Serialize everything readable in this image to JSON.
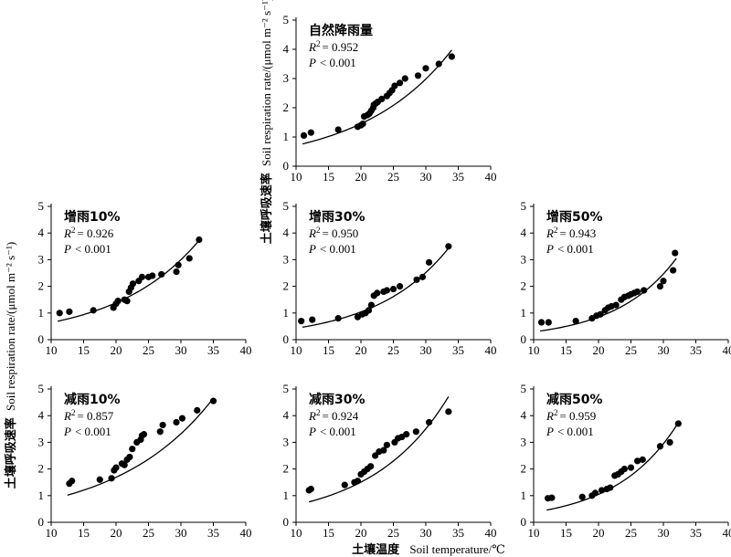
{
  "figure": {
    "ylabel_cn": "土壤呼吸速率",
    "ylabel_en": "Soil respiration rate/(μmol m⁻² s⁻¹)",
    "xlabel_cn": "土壤温度",
    "xlabel_en": "Soil temperature/℃"
  },
  "chart_data": [
    {
      "type": "scatter",
      "title": "自然降雨量",
      "r2_text": "= 0.952",
      "p_text": "< 0.001",
      "xlim": [
        10,
        40
      ],
      "ylim": [
        0,
        5
      ],
      "xticks": [
        "10",
        "15",
        "20",
        "25",
        "30",
        "35",
        "40"
      ],
      "yticks": [
        "0",
        "1",
        "2",
        "3",
        "4",
        "5"
      ],
      "fit": {
        "a": 0.345,
        "b": 0.0719,
        "x_start": 11,
        "x_end": 34
      },
      "points": [
        [
          11.2,
          1.05
        ],
        [
          12.3,
          1.15
        ],
        [
          16.5,
          1.25
        ],
        [
          19.5,
          1.35
        ],
        [
          20,
          1.4
        ],
        [
          20.3,
          1.45
        ],
        [
          20.5,
          1.7
        ],
        [
          21,
          1.75
        ],
        [
          21.3,
          1.8
        ],
        [
          21.6,
          1.9
        ],
        [
          21.9,
          2.0
        ],
        [
          22,
          2.1
        ],
        [
          22.3,
          2.15
        ],
        [
          22.6,
          2.2
        ],
        [
          23.2,
          2.3
        ],
        [
          24,
          2.4
        ],
        [
          24.4,
          2.5
        ],
        [
          24.8,
          2.6
        ],
        [
          25.2,
          2.75
        ],
        [
          26,
          2.85
        ],
        [
          26.8,
          3.0
        ],
        [
          28.8,
          3.1
        ],
        [
          30,
          3.35
        ],
        [
          32,
          3.5
        ],
        [
          34,
          3.75
        ]
      ]
    },
    {
      "type": "scatter",
      "title": "增雨10%",
      "r2_text": "= 0.926",
      "p_text": "< 0.001",
      "xlim": [
        10,
        40
      ],
      "ylim": [
        0,
        5
      ],
      "xticks": [
        "10",
        "15",
        "20",
        "25",
        "30",
        "35",
        "40"
      ],
      "yticks": [
        "0",
        "1",
        "2",
        "3",
        "4",
        "5"
      ],
      "fit": {
        "a": 0.295,
        "b": 0.0773,
        "x_start": 11,
        "x_end": 33
      },
      "points": [
        [
          11.3,
          1.0
        ],
        [
          12.8,
          1.05
        ],
        [
          16.5,
          1.1
        ],
        [
          19.6,
          1.2
        ],
        [
          20,
          1.35
        ],
        [
          20.3,
          1.45
        ],
        [
          21.3,
          1.5
        ],
        [
          21.7,
          1.45
        ],
        [
          22,
          1.8
        ],
        [
          22.3,
          1.95
        ],
        [
          22.6,
          2.1
        ],
        [
          23.5,
          2.2
        ],
        [
          24,
          2.35
        ],
        [
          25,
          2.35
        ],
        [
          25.6,
          2.4
        ],
        [
          27,
          2.45
        ],
        [
          29.3,
          2.55
        ],
        [
          29.6,
          2.8
        ],
        [
          31.3,
          3.05
        ],
        [
          32.8,
          3.75
        ]
      ]
    },
    {
      "type": "scatter",
      "title": "增雨30%",
      "r2_text": "= 0.950",
      "p_text": "< 0.001",
      "xlim": [
        10,
        40
      ],
      "ylim": [
        0,
        5
      ],
      "xticks": [
        "10",
        "15",
        "20",
        "25",
        "30",
        "35",
        "40"
      ],
      "yticks": [
        "0",
        "1",
        "2",
        "3",
        "4",
        "5"
      ],
      "fit": {
        "a": 0.177,
        "b": 0.0885,
        "x_start": 11,
        "x_end": 33.5
      },
      "points": [
        [
          10.8,
          0.7
        ],
        [
          12.5,
          0.75
        ],
        [
          16.5,
          0.8
        ],
        [
          19.5,
          0.85
        ],
        [
          20.2,
          0.95
        ],
        [
          20.7,
          1.0
        ],
        [
          21.2,
          1.1
        ],
        [
          21.6,
          1.3
        ],
        [
          22,
          1.65
        ],
        [
          22.5,
          1.75
        ],
        [
          23.5,
          1.8
        ],
        [
          24,
          1.85
        ],
        [
          25,
          1.9
        ],
        [
          26,
          2.0
        ],
        [
          28.6,
          2.25
        ],
        [
          29.5,
          2.35
        ],
        [
          30.5,
          2.9
        ],
        [
          33.5,
          3.5
        ]
      ]
    },
    {
      "type": "scatter",
      "title": "增雨50%",
      "r2_text": "= 0.943",
      "p_text": "< 0.001",
      "xlim": [
        10,
        40
      ],
      "ylim": [
        0,
        5
      ],
      "xticks": [
        "10",
        "15",
        "20",
        "25",
        "30",
        "35",
        "40"
      ],
      "yticks": [
        "0",
        "1",
        "2",
        "3",
        "4",
        "5"
      ],
      "fit": {
        "a": 0.101,
        "b": 0.1065,
        "x_start": 11,
        "x_end": 32
      },
      "points": [
        [
          11.2,
          0.65
        ],
        [
          12.3,
          0.65
        ],
        [
          16.5,
          0.7
        ],
        [
          19,
          0.8
        ],
        [
          19.7,
          0.9
        ],
        [
          20.3,
          0.95
        ],
        [
          21,
          1.1
        ],
        [
          21.5,
          1.2
        ],
        [
          22,
          1.25
        ],
        [
          22.7,
          1.3
        ],
        [
          23.5,
          1.5
        ],
        [
          24,
          1.6
        ],
        [
          24.6,
          1.65
        ],
        [
          25,
          1.7
        ],
        [
          25.5,
          1.75
        ],
        [
          26,
          1.8
        ],
        [
          27,
          1.85
        ],
        [
          29.5,
          2.0
        ],
        [
          30,
          2.2
        ],
        [
          31.5,
          2.6
        ],
        [
          31.8,
          3.25
        ]
      ]
    },
    {
      "type": "scatter",
      "title": "减雨10%",
      "r2_text": "= 0.857",
      "p_text": "< 0.001",
      "xlim": [
        10,
        40
      ],
      "ylim": [
        0,
        5
      ],
      "xticks": [
        "10",
        "15",
        "20",
        "25",
        "30",
        "35",
        "40"
      ],
      "yticks": [
        "0",
        "1",
        "2",
        "3",
        "4",
        "5"
      ],
      "fit": {
        "a": 0.437,
        "b": 0.0676,
        "x_start": 12.5,
        "x_end": 35
      },
      "points": [
        [
          12.8,
          1.45
        ],
        [
          13.2,
          1.55
        ],
        [
          17.5,
          1.6
        ],
        [
          19.3,
          1.65
        ],
        [
          19.7,
          1.95
        ],
        [
          20,
          2.05
        ],
        [
          20.9,
          2.2
        ],
        [
          21.3,
          2.15
        ],
        [
          21.7,
          2.35
        ],
        [
          22.1,
          2.45
        ],
        [
          22.5,
          2.75
        ],
        [
          23.2,
          3.0
        ],
        [
          23.8,
          3.1
        ],
        [
          24,
          3.25
        ],
        [
          24.3,
          3.3
        ],
        [
          26.8,
          3.4
        ],
        [
          27.2,
          3.65
        ],
        [
          29.3,
          3.75
        ],
        [
          30.2,
          3.9
        ],
        [
          32.5,
          4.2
        ],
        [
          35,
          4.55
        ]
      ]
    },
    {
      "type": "scatter",
      "title": "减雨30%",
      "r2_text": "= 0.924",
      "p_text": "< 0.001",
      "xlim": [
        10,
        40
      ],
      "ylim": [
        0,
        5
      ],
      "xticks": [
        "10",
        "15",
        "20",
        "25",
        "30",
        "35",
        "40"
      ],
      "yticks": [
        "0",
        "1",
        "2",
        "3",
        "4",
        "5"
      ],
      "fit": {
        "a": 0.278,
        "b": 0.0845,
        "x_start": 12,
        "x_end": 33.5
      },
      "points": [
        [
          12,
          1.2
        ],
        [
          12.3,
          1.25
        ],
        [
          17.5,
          1.4
        ],
        [
          19,
          1.5
        ],
        [
          19.5,
          1.55
        ],
        [
          20,
          1.8
        ],
        [
          20.5,
          1.9
        ],
        [
          21,
          2.0
        ],
        [
          21.5,
          2.1
        ],
        [
          22.2,
          2.5
        ],
        [
          22.8,
          2.65
        ],
        [
          23.5,
          2.7
        ],
        [
          24,
          2.9
        ],
        [
          25.2,
          3.0
        ],
        [
          25.7,
          3.15
        ],
        [
          26.3,
          3.2
        ],
        [
          27,
          3.3
        ],
        [
          28.5,
          3.4
        ],
        [
          30.5,
          3.75
        ],
        [
          33.5,
          4.15
        ]
      ]
    },
    {
      "type": "scatter",
      "title": "减雨50%",
      "r2_text": "= 0.959",
      "p_text": "< 0.001",
      "xlim": [
        10,
        40
      ],
      "ylim": [
        0,
        5
      ],
      "xticks": [
        "10",
        "15",
        "20",
        "25",
        "30",
        "35",
        "40"
      ],
      "yticks": [
        "0",
        "1",
        "2",
        "3",
        "4",
        "5"
      ],
      "fit": {
        "a": 0.132,
        "b": 0.1035,
        "x_start": 12,
        "x_end": 32.5
      },
      "points": [
        [
          12.2,
          0.9
        ],
        [
          12.8,
          0.92
        ],
        [
          17.5,
          0.95
        ],
        [
          19,
          1.0
        ],
        [
          19.5,
          1.1
        ],
        [
          20.5,
          1.2
        ],
        [
          21.3,
          1.25
        ],
        [
          21.8,
          1.3
        ],
        [
          22.5,
          1.75
        ],
        [
          23,
          1.8
        ],
        [
          23.5,
          1.9
        ],
        [
          24,
          2.0
        ],
        [
          25,
          2.05
        ],
        [
          26,
          2.3
        ],
        [
          26.8,
          2.35
        ],
        [
          29.5,
          2.85
        ],
        [
          31,
          3.0
        ],
        [
          32.3,
          3.7
        ]
      ]
    }
  ]
}
